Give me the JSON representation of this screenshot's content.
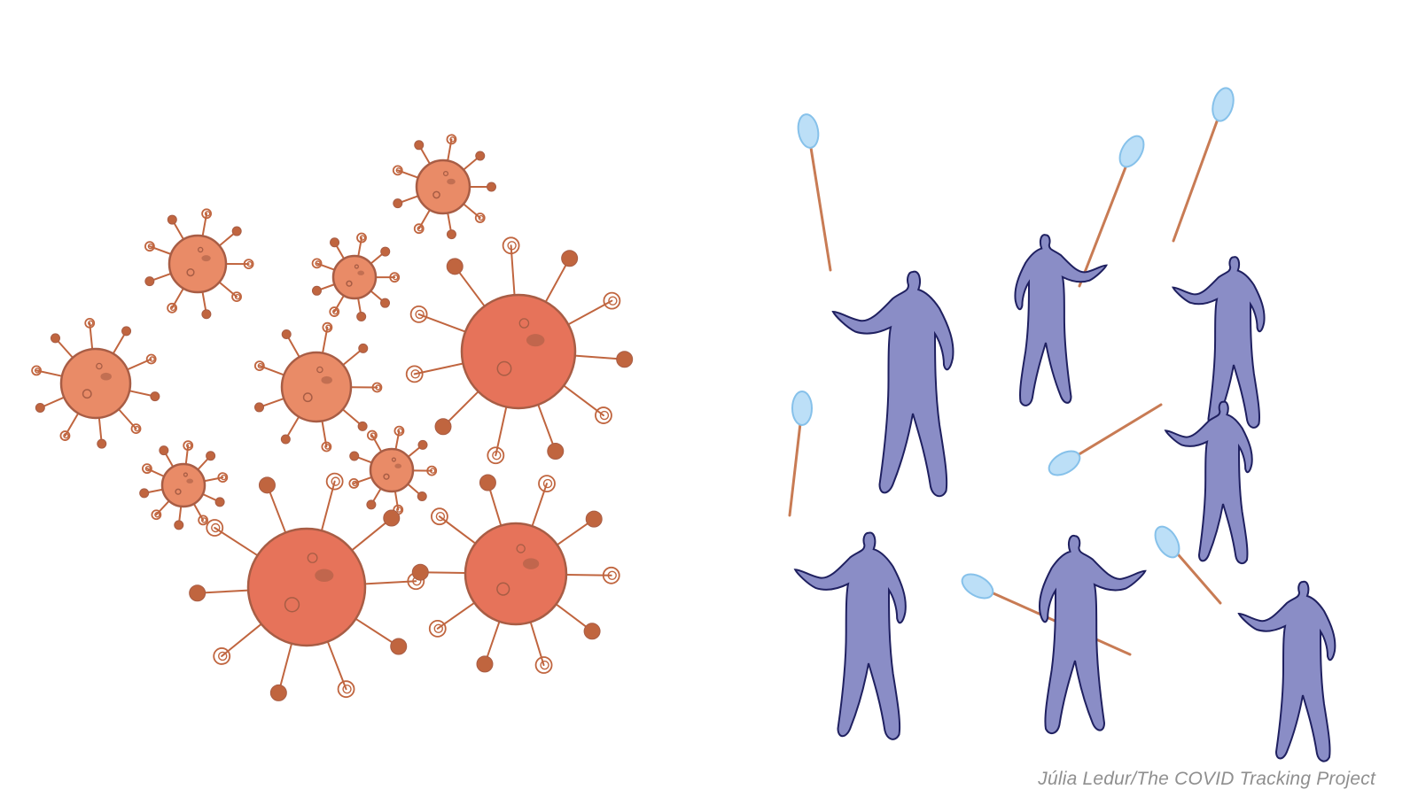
{
  "illustration": {
    "credit": "Júlia Ledur/The COVID Tracking Project",
    "colors": {
      "virus_body_small": "#e98b67",
      "virus_body_large": "#e6735a",
      "virus_outline": "#a85d45",
      "virus_spike": "#c0653f",
      "person_fill": "#8a8dc6",
      "person_outline": "#1f2060",
      "net_handle": "#c87b54",
      "net_head": "#bcdff7",
      "net_head_stroke": "#86c1ea"
    },
    "icons": {
      "virus": "virus-icon",
      "person": "person-silhouette-icon",
      "net": "butterfly-net-icon"
    }
  }
}
